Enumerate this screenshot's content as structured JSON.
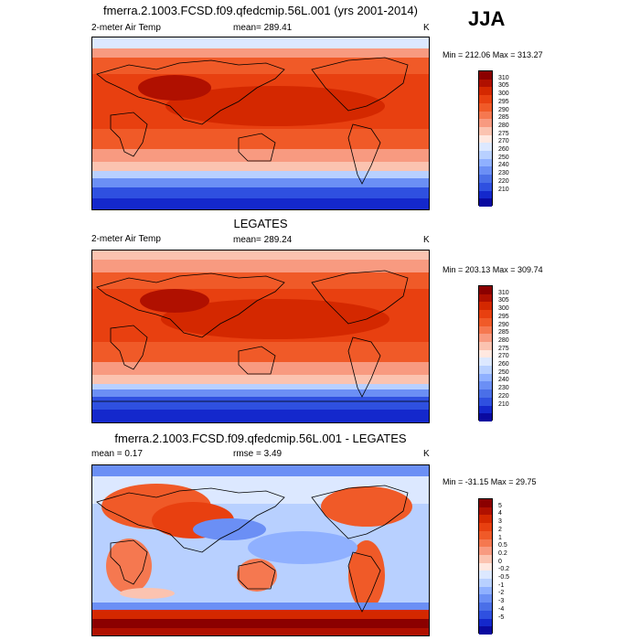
{
  "season": "JJA",
  "panels": [
    {
      "title": "fmerra.2.1003.FCSD.f09.qfedcmip.56L.001 (yrs 2001-2014)",
      "left_label": "2-meter Air Temp",
      "center_label": "mean= 289.41",
      "right_label": "K",
      "minmax": "Min = 212.06 Max = 313.27"
    },
    {
      "title": "LEGATES",
      "left_label": "2-meter Air Temp",
      "center_label": "mean= 289.24",
      "right_label": "K",
      "minmax": "Min = 203.13 Max = 309.74"
    },
    {
      "title": "fmerra.2.1003.FCSD.f09.qfedcmip.56L.001 - LEGATES",
      "left_label": "mean =   0.17",
      "center_label": "rmse =   3.49",
      "right_label": "K",
      "minmax": "Min = -31.15 Max =  29.75"
    }
  ],
  "chart_data": [
    {
      "type": "heatmap",
      "title": "fmerra.2.1003.FCSD.f09.qfedcmip.56L.001 (yrs 2001-2014)",
      "variable": "2-meter Air Temp",
      "units": "K",
      "mean": 289.41,
      "min": 212.06,
      "max": 313.27,
      "colorbar_levels": [
        310,
        305,
        300,
        295,
        290,
        285,
        280,
        275,
        270,
        260,
        250,
        240,
        230,
        220,
        210
      ],
      "colors": [
        "#8b0000",
        "#b01000",
        "#d42800",
        "#e84010",
        "#f05a28",
        "#f57850",
        "#f89a80",
        "#fbc3b0",
        "#ffe8e0",
        "#dce8ff",
        "#b8d0ff",
        "#8fb0ff",
        "#6b8ff5",
        "#4a6fe8",
        "#2f50e0",
        "#1428cc",
        "#0a0aa0"
      ]
    },
    {
      "type": "heatmap",
      "title": "LEGATES",
      "variable": "2-meter Air Temp",
      "units": "K",
      "mean": 289.24,
      "min": 203.13,
      "max": 309.74,
      "colorbar_levels": [
        310,
        305,
        300,
        295,
        290,
        285,
        280,
        275,
        270,
        260,
        250,
        240,
        230,
        220,
        210
      ],
      "colors": [
        "#8b0000",
        "#b01000",
        "#d42800",
        "#e84010",
        "#f05a28",
        "#f57850",
        "#f89a80",
        "#fbc3b0",
        "#ffe8e0",
        "#dce8ff",
        "#b8d0ff",
        "#8fb0ff",
        "#6b8ff5",
        "#4a6fe8",
        "#2f50e0",
        "#1428cc",
        "#0a0aa0"
      ]
    },
    {
      "type": "heatmap",
      "title": "fmerra.2.1003.FCSD.f09.qfedcmip.56L.001 - LEGATES",
      "units": "K",
      "mean": 0.17,
      "rmse": 3.49,
      "min": -31.15,
      "max": 29.75,
      "colorbar_levels": [
        "5",
        "4",
        "3",
        "2",
        "1",
        "0.5",
        "0.2",
        "0",
        "-0.2",
        "-0.5",
        "-1",
        "-2",
        "-3",
        "-4",
        "-5"
      ],
      "colors": [
        "#8b0000",
        "#b01000",
        "#d42800",
        "#e84010",
        "#f05a28",
        "#f57850",
        "#f89a80",
        "#fbc3b0",
        "#ffe8e0",
        "#dce8ff",
        "#b8d0ff",
        "#8fb0ff",
        "#6b8ff5",
        "#4a6fe8",
        "#2f50e0",
        "#1428cc",
        "#0a0aa0"
      ]
    }
  ]
}
